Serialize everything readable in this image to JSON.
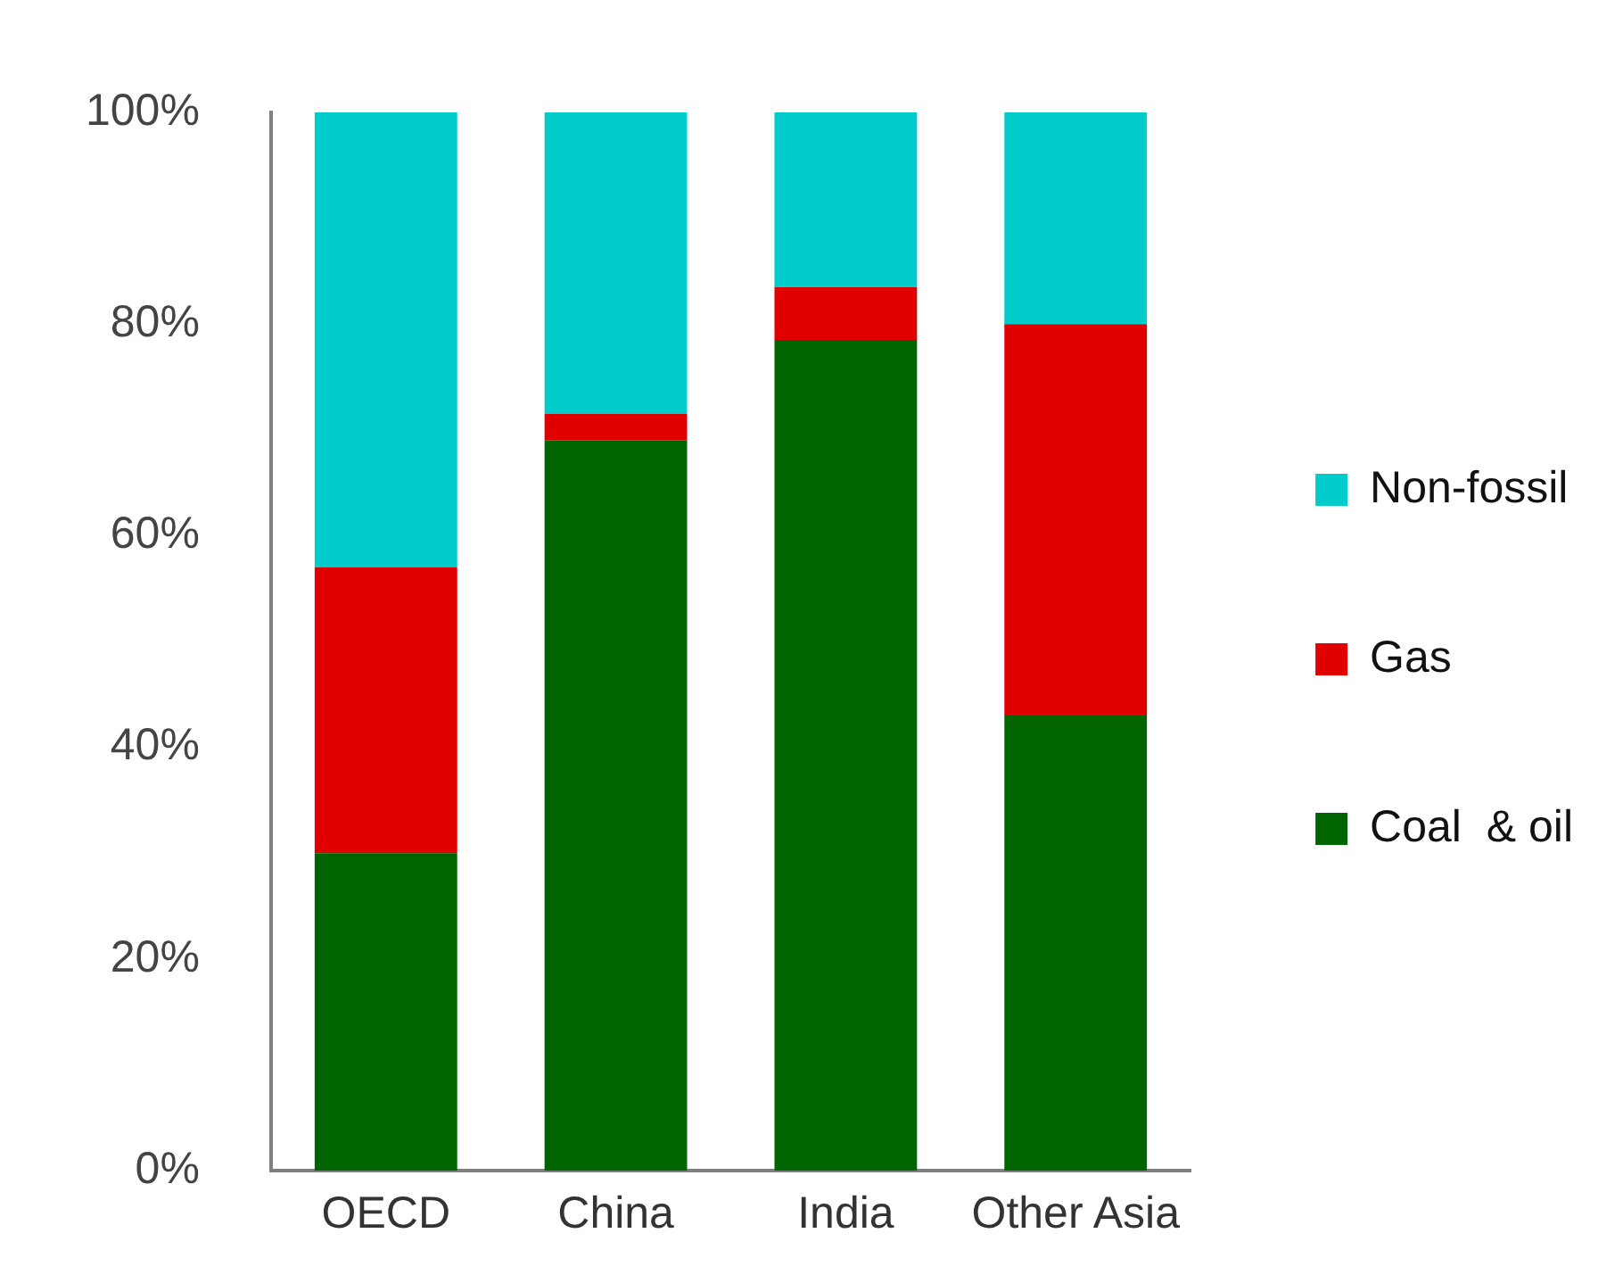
{
  "chart_data": {
    "type": "bar",
    "stacked": true,
    "categories": [
      "OECD",
      "China",
      "India",
      "Other Asia"
    ],
    "series": [
      {
        "name": "Coal  & oil",
        "color": "#006400",
        "values": [
          30,
          69,
          78.5,
          43
        ]
      },
      {
        "name": "Gas",
        "color": "#e00000",
        "values": [
          27,
          2.5,
          5,
          37
        ]
      },
      {
        "name": "Non-fossil",
        "color": "#00cccc",
        "values": [
          43,
          28.5,
          16.5,
          20
        ]
      }
    ],
    "ylim": [
      0,
      100
    ],
    "yticks": [
      {
        "value": 0,
        "label": "0%"
      },
      {
        "value": 20,
        "label": "20%"
      },
      {
        "value": 40,
        "label": "40%"
      },
      {
        "value": 60,
        "label": "60%"
      },
      {
        "value": 80,
        "label": "80%"
      },
      {
        "value": 100,
        "label": "100%"
      }
    ],
    "grid": false,
    "legend": "right"
  }
}
